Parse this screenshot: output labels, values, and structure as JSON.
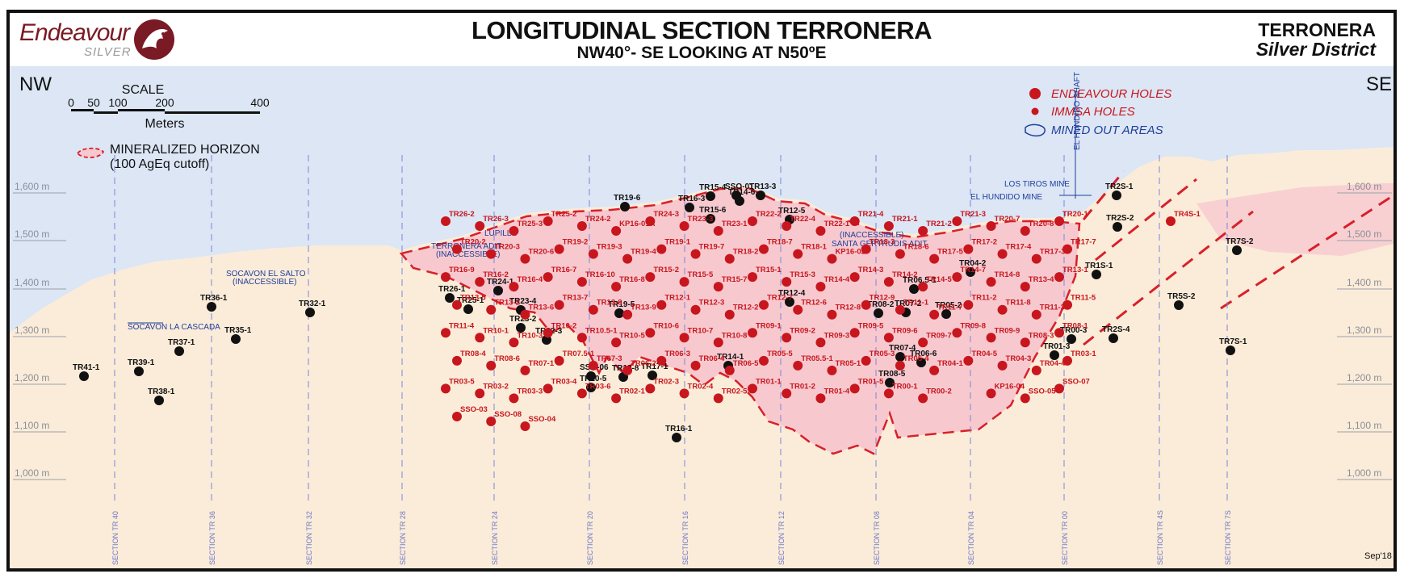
{
  "header": {
    "logo_brand": "Endeavour",
    "logo_sub": "SILVER",
    "title": "LONGITUDINAL SECTION TERRONERA",
    "subtitle": "NW40°- SE LOOKING AT N50ºE",
    "district_name": "TERRONERA",
    "district_sub": "Silver District"
  },
  "orientation": {
    "left": "NW",
    "right": "SE"
  },
  "scale_bar": {
    "title": "SCALE",
    "ticks": [
      "0",
      "50",
      "100",
      "200",
      "400"
    ],
    "unit": "Meters"
  },
  "legend": {
    "mineralized": "MINERALIZED HORIZON",
    "mineralized_sub": "(100 AgEq cutoff)",
    "endeavour": "ENDEAVOUR HOLES",
    "immsa": "IMMSA HOLES",
    "mined": "MINED OUT AREAS"
  },
  "colors": {
    "endeavour_hole": "#c8161e",
    "immsa_hole": "#111111",
    "sky": "#dce6f5",
    "ground": "#fbecd9",
    "mineral": "#f7c9cf",
    "label_blue": "#1e3e9a"
  },
  "elevations": [
    "1,600 m",
    "1,500 m",
    "1,400 m",
    "1,300 m",
    "1,200 m",
    "1,100 m",
    "1,000 m"
  ],
  "sections": [
    "SECTION TR 40",
    "SECTION TR 36",
    "SECTION TR 32",
    "SECTION TR 28",
    "SECTION TR 24",
    "SECTION TR 20",
    "SECTION TR 16",
    "SECTION TR 12",
    "SECTION TR 08",
    "SECTION TR 04",
    "SECTION TR 00",
    "SECTION TR 4S",
    "SECTION TR 7S"
  ],
  "workings": [
    "LUPILLO",
    "TERRONERA ADIT",
    "(INACCESSIBLE)",
    "SOCAVON EL SALTO",
    "(INACCESSIBLE)",
    "SOCAVON LA CASCADA",
    "(INACCESSIBLE)",
    "SANTA GERTRUDIS ADIT",
    "LOS TIROS MINE",
    "EL HUNDIDO MINE",
    "EL HUNDIDO SHAFT"
  ],
  "date": "Sep'18",
  "immsa_holes": [
    "TR41-1",
    "TR39-1",
    "TR38-1",
    "TR37-1",
    "TR36-1",
    "TR35-1",
    "TR32-1",
    "TR26-1",
    "TR25-1",
    "TR24-1",
    "TR23-4",
    "TR23-2",
    "TR22-3",
    "SSO-06",
    "TR20-5",
    "TR19-8",
    "TR17-1",
    "TR16-1",
    "TR19-5",
    "TR19-6",
    "TR16-3",
    "TR15-4",
    "TR15-6",
    "SSO-01",
    "TR14-6",
    "TR13-3",
    "TR12-5",
    "TR12-4",
    "TR14-1",
    "TR08-2",
    "TR07-2",
    "TR06.5-1",
    "TR07-4",
    "TR08-5",
    "TR06-6",
    "TR05-2",
    "TR04-2",
    "TR01-3",
    "TR00-3",
    "TR2S-1",
    "TR2S-2",
    "TR1S-1",
    "TR2S-4",
    "TR5S-2",
    "TR7S-1",
    "TR7S-2"
  ],
  "endeavour_holes": [
    "TR26-2",
    "TR26-3",
    "TR25-3",
    "TR25-2",
    "TR24-2",
    "KP16-01A",
    "TR24-3",
    "TR23-3",
    "TR23-1",
    "TR22-2",
    "TR22-4",
    "TR22-1",
    "TR21-4",
    "TR21-1",
    "TR21-2",
    "TR21-3",
    "TR20-7",
    "TR20-8",
    "TR20-1",
    "TR20-2",
    "TR20-3",
    "TR20-6",
    "TR19-2",
    "TR19-3",
    "TR19-4",
    "TR19-1",
    "TR19-7",
    "TR18-2",
    "TR18-7",
    "TR18-1",
    "KP16-02",
    "TR18-3",
    "TR18-6",
    "TR17-5",
    "TR17-2",
    "TR17-4",
    "TR17-3",
    "TR17-7",
    "TR16-9",
    "TR16-2",
    "TR16-4",
    "TR16-7",
    "TR16-10",
    "TR16-8",
    "TR15-2",
    "TR15-5",
    "TR15-7",
    "TR15-1",
    "TR15-3",
    "TR14-4",
    "TR14-3",
    "TR14-2",
    "TR14-5",
    "TR14-7",
    "TR14-8",
    "TR13-4",
    "TR13-1",
    "TR13-5",
    "TR13-2",
    "TR13-6",
    "TR13-7",
    "TR13-8",
    "TR13-9",
    "TR12-1",
    "TR12-3",
    "TR12-2",
    "TR12-7",
    "TR12-6",
    "TR12-8",
    "TR12-9",
    "TR11-1",
    "TR11-7",
    "TR11-2",
    "TR11-8",
    "TR11-3",
    "TR11-5",
    "TR11-4",
    "TR10-1",
    "TR10-3",
    "TR10-2",
    "TR10.5-1",
    "TR10-5",
    "TR10-6",
    "TR10-7",
    "TR10-8",
    "TR09-1",
    "TR09-2",
    "TR09-3",
    "TR09-5",
    "TR09-6",
    "TR09-7",
    "TR09-8",
    "TR09-9",
    "TR08-3",
    "TR08-1",
    "TR08-4",
    "TR08-6",
    "TR07-1",
    "TR07.5-1",
    "TR07-3",
    "TR06-2",
    "TR06-3",
    "TR06-4",
    "TR06-5",
    "TR05-5",
    "TR05.5-1",
    "TR05-1",
    "TR05-3",
    "TR05-4",
    "TR04-1",
    "TR04-5",
    "TR04-3",
    "TR04-4",
    "TR03-1",
    "TR03-5",
    "TR03-2",
    "TR03-3",
    "TR03-4",
    "TR03-6",
    "TR02-1",
    "TR02-3",
    "TR02-4",
    "TR02-5",
    "TR01-1",
    "TR01-2",
    "TR01-4",
    "TR01-5",
    "TR00-1",
    "TR00-2",
    "TR4S-1",
    "KP16-04",
    "SSO-05",
    "SSO-07",
    "SSO-03",
    "SSO-08",
    "SSO-04"
  ]
}
